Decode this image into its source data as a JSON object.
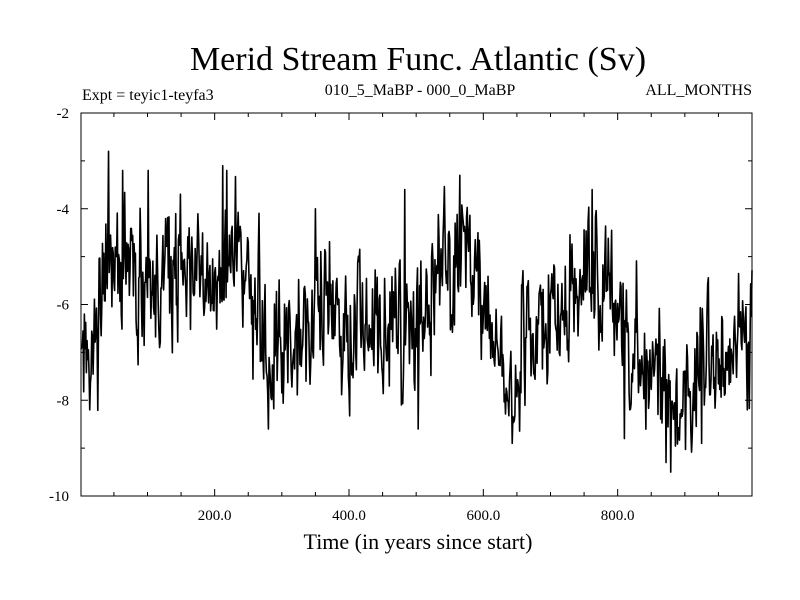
{
  "chart_data": {
    "type": "line",
    "title": "Merid Stream Func. Atlantic (Sv)",
    "subtitle_left": "Expt = teyic1-teyfa3",
    "subtitle_center": "010_5_MaBP - 000_0_MaBP",
    "subtitle_right": "ALL_MONTHS",
    "xlabel": "Time (in years since start)",
    "ylabel": "",
    "xlim": [
      1,
      1000
    ],
    "ylim": [
      -10,
      -2
    ],
    "x_ticks": [
      200,
      400,
      600,
      800
    ],
    "x_tick_labels": [
      "200.0",
      "400.0",
      "600.0",
      "800.0"
    ],
    "y_ticks": [
      -2,
      -4,
      -6,
      -8,
      -10
    ],
    "y_tick_labels": [
      "-2",
      "-4",
      "-6",
      "-8",
      "-10"
    ],
    "grid": false,
    "legend": "none",
    "series": [
      {
        "name": "Merid Stream Func. Atlantic",
        "sampling": "annual values, years 1 to 1000 (approximate trace)",
        "trend_points": {
          "x": [
            1,
            10,
            20,
            30,
            40,
            60,
            80,
            100,
            130,
            160,
            190,
            210,
            230,
            250,
            265,
            280,
            300,
            320,
            340,
            370,
            400,
            430,
            460,
            490,
            520,
            550,
            570,
            590,
            610,
            630,
            650,
            680,
            710,
            740,
            760,
            780,
            800,
            820,
            840,
            860,
            880,
            900,
            920,
            950,
            970,
            1000
          ],
          "y": [
            -7.5,
            -7.3,
            -6.8,
            -6.0,
            -5.3,
            -5.4,
            -5.7,
            -5.8,
            -5.3,
            -5.1,
            -5.6,
            -4.8,
            -4.6,
            -5.6,
            -6.4,
            -7.0,
            -6.8,
            -6.6,
            -6.3,
            -6.1,
            -6.3,
            -6.4,
            -6.9,
            -6.6,
            -6.0,
            -5.4,
            -5.0,
            -5.4,
            -6.3,
            -7.0,
            -7.1,
            -6.7,
            -6.2,
            -5.8,
            -5.3,
            -5.8,
            -6.4,
            -6.9,
            -7.2,
            -7.7,
            -8.0,
            -7.7,
            -7.4,
            -7.2,
            -6.8,
            -6.3
          ]
        },
        "noise_amplitude_sv": 0.85,
        "peaks": {
          "x": [
            42,
            63,
            101,
            212,
            218,
            350,
            483,
            565,
            762
          ],
          "y": [
            -2.8,
            -3.2,
            -3.2,
            -3.1,
            -3.2,
            -4.0,
            -3.6,
            -3.3,
            -3.6
          ]
        },
        "troughs": {
          "x": [
            14,
            280,
            503,
            643,
            810,
            872,
            879,
            925
          ],
          "y": [
            -8.2,
            -8.6,
            -8.6,
            -8.9,
            -8.8,
            -9.3,
            -9.5,
            -8.9
          ]
        }
      }
    ]
  }
}
